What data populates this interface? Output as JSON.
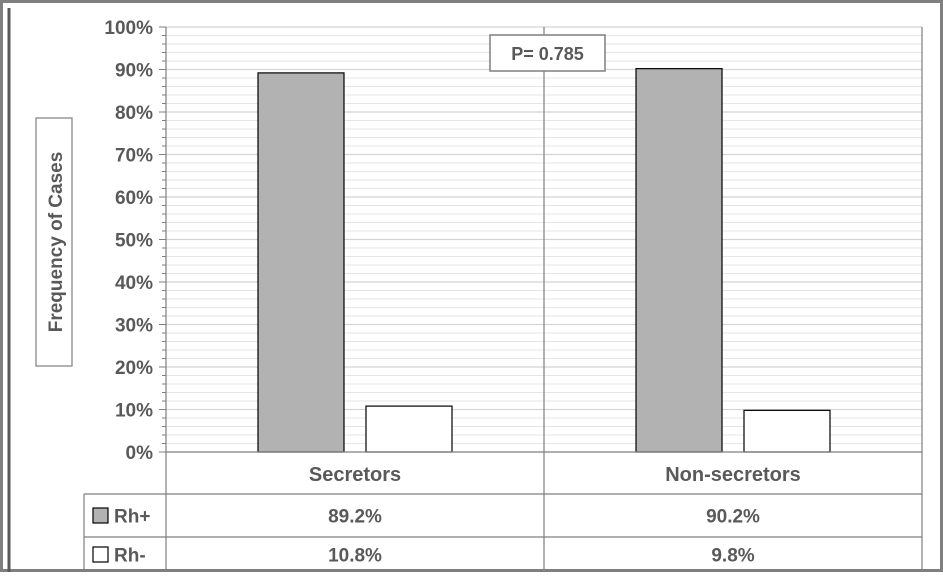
{
  "chart_data": {
    "type": "bar",
    "title": "",
    "xlabel": "",
    "ylabel": "Frequency of Cases",
    "ylim": [
      0,
      100
    ],
    "y_unit": "%",
    "y_ticks": [
      "0%",
      "10%",
      "20%",
      "30%",
      "40%",
      "50%",
      "60%",
      "70%",
      "80%",
      "90%",
      "100%"
    ],
    "categories": [
      "Secretors",
      "Non-secretors"
    ],
    "series": [
      {
        "name": "Rh+",
        "values": [
          89.2,
          90.2
        ],
        "labels": [
          "89.2%",
          "90.2%"
        ],
        "color": "#b2b2b2"
      },
      {
        "name": "Rh-",
        "values": [
          10.8,
          9.8
        ],
        "labels": [
          "10.8%",
          "9.8%"
        ],
        "color": "#ffffff"
      }
    ],
    "annotation": "P= 0.785",
    "grid": true,
    "legend": "data-table"
  }
}
